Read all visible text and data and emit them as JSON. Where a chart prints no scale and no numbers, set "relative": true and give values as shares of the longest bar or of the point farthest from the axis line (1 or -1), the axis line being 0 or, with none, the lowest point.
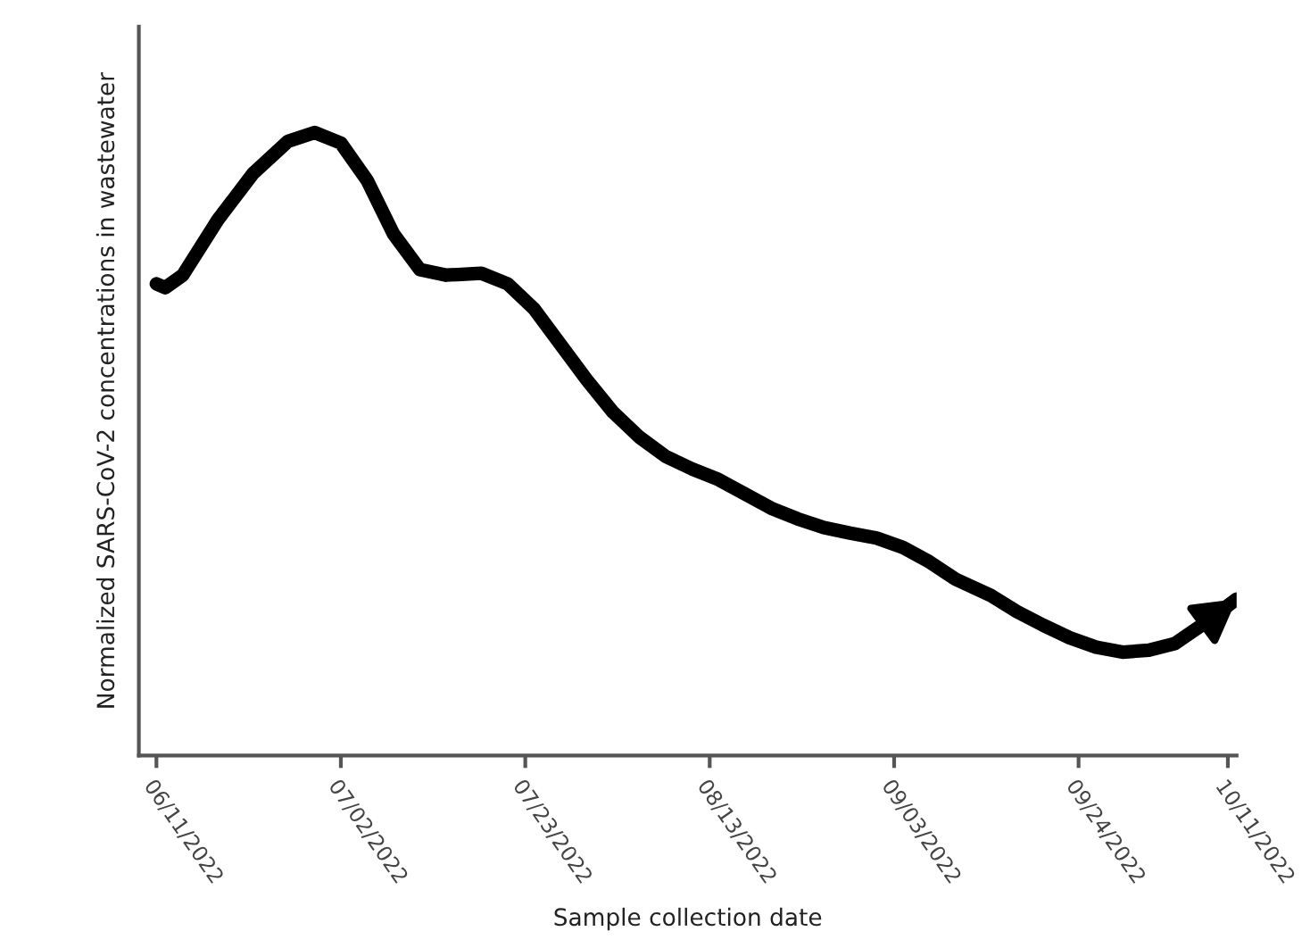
{
  "chart_data": {
    "type": "line",
    "relative": true,
    "xlabel": "Sample collection date",
    "ylabel": "Normalized SARS-CoV-2 concentrations in wastewater",
    "x": [
      "2022-06-11",
      "2022-06-12",
      "2022-06-14",
      "2022-06-18",
      "2022-06-22",
      "2022-06-26",
      "2022-06-29",
      "2022-07-02",
      "2022-07-05",
      "2022-07-08",
      "2022-07-11",
      "2022-07-14",
      "2022-07-18",
      "2022-07-21",
      "2022-07-24",
      "2022-07-27",
      "2022-07-30",
      "2022-08-02",
      "2022-08-05",
      "2022-08-08",
      "2022-08-11",
      "2022-08-14",
      "2022-08-17",
      "2022-08-20",
      "2022-08-23",
      "2022-08-26",
      "2022-08-29",
      "2022-09-01",
      "2022-09-04",
      "2022-09-07",
      "2022-09-10",
      "2022-09-14",
      "2022-09-17",
      "2022-09-20",
      "2022-09-23",
      "2022-09-26",
      "2022-09-29",
      "2022-10-02",
      "2022-10-05",
      "2022-10-08",
      "2022-10-12"
    ],
    "series": [
      {
        "color": "#000000",
        "values": [
          0.757,
          0.751,
          0.771,
          0.86,
          0.934,
          0.986,
          1.0,
          0.983,
          0.923,
          0.837,
          0.78,
          0.771,
          0.774,
          0.757,
          0.717,
          0.66,
          0.603,
          0.551,
          0.511,
          0.48,
          0.46,
          0.443,
          0.42,
          0.397,
          0.38,
          0.366,
          0.357,
          0.349,
          0.334,
          0.311,
          0.283,
          0.257,
          0.231,
          0.209,
          0.189,
          0.174,
          0.166,
          0.169,
          0.18,
          0.209,
          0.251
        ]
      }
    ],
    "xlim": [
      "2022-06-09",
      "2022-10-12"
    ],
    "xticks": [
      {
        "value": "2022-06-11",
        "label": "06/11/2022"
      },
      {
        "value": "2022-07-02",
        "label": "07/02/2022"
      },
      {
        "value": "2022-07-23",
        "label": "07/23/2022"
      },
      {
        "value": "2022-08-13",
        "label": "08/13/2022"
      },
      {
        "value": "2022-09-03",
        "label": "09/03/2022"
      },
      {
        "value": "2022-09-24",
        "label": "09/24/2022"
      },
      {
        "value": "2022-10-11",
        "label": "10/11/2022"
      }
    ],
    "tick_labels": "x",
    "grid": false,
    "legend": false,
    "marker": "none",
    "line_style": "solid"
  }
}
